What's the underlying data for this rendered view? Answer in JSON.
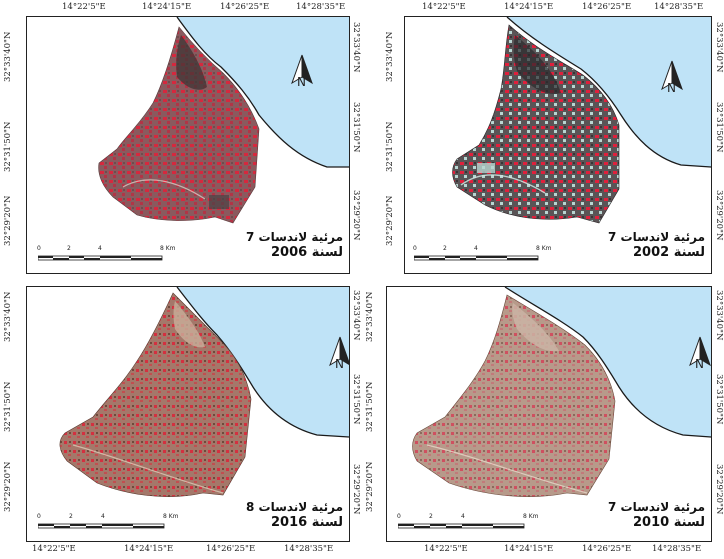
{
  "panels": [
    {
      "id": "p2006",
      "title_line1": "مرئية لاندسات 7",
      "title_line2": "لسنة 2006",
      "top_ticks": [
        "14°22'5\"E",
        "14°24'15\"E",
        "14°26'25\"E",
        "14°28'35\"E"
      ],
      "bottom_ticks": [],
      "left_ticks": [
        "32°33'40\"N",
        "32°31'50\"N",
        "32°29'20\"N"
      ],
      "right_ticks": [
        "32°33'40\"N",
        "32°31'50\"N",
        "32°29'20\"N"
      ],
      "scale_labels": [
        "0",
        "2",
        "4",
        "8 Km"
      ],
      "north_label": "N"
    },
    {
      "id": "p2002",
      "title_line1": "مرئية لاندسات 7",
      "title_line2": "لسنة 2002",
      "top_ticks": [
        "14°22'5\"E",
        "14°24'15\"E",
        "14°26'25\"E",
        "14°28'35\"E"
      ],
      "bottom_ticks": [],
      "left_ticks": [
        "32°33'40\"N",
        "32°31'50\"N",
        "32°29'20\"N"
      ],
      "right_ticks": [
        "32°33'40\"N",
        "32°31'50\"N",
        "32°29'20\"N"
      ],
      "scale_labels": [
        "0",
        "2",
        "4",
        "8 Km"
      ],
      "north_label": "N"
    },
    {
      "id": "p2016",
      "title_line1": "مرئية لاندسات 8",
      "title_line2": "لسنة 2016",
      "top_ticks": [],
      "bottom_ticks": [
        "14°22'5\"E",
        "14°24'15\"E",
        "14°26'25\"E",
        "14°28'35\"E"
      ],
      "left_ticks": [
        "32°33'40\"N",
        "32°31'50\"N",
        "32°29'20\"N"
      ],
      "right_ticks": [
        "32°33'40\"N",
        "32°31'50\"N",
        "32°29'20\"N"
      ],
      "scale_labels": [
        "0",
        "2",
        "4",
        "8 Km"
      ],
      "north_label": "N"
    },
    {
      "id": "p2010",
      "title_line1": "مرئية لاندسات 7",
      "title_line2": "لسنة 2010",
      "top_ticks": [],
      "bottom_ticks": [
        "14°22'5\"E",
        "14°24'15\"E",
        "14°26'25\"E",
        "14°28'35\"E"
      ],
      "left_ticks": [
        "32°33'40\"N",
        "32°31'50\"N",
        "32°29'20\"N"
      ],
      "right_ticks": [
        "32°33'40\"N",
        "32°31'50\"N",
        "32°29'20\"N"
      ],
      "scale_labels": [
        "0",
        "2",
        "4",
        "8 Km"
      ],
      "north_label": "N"
    }
  ],
  "colors": {
    "sea": "#bfe3f7",
    "land_bg": "#ffffff",
    "p2006": {
      "base": "#8a5a5e",
      "veg": "#d6283e",
      "dark": "#3d3536"
    },
    "p2002": {
      "base": "#5a5456",
      "veg": "#e0203c",
      "light": "#b8d6d2"
    },
    "p2016": {
      "base": "#a4786a",
      "veg": "#d43040",
      "dark": "#6e4a3c"
    },
    "p2010": {
      "base": "#b79a8a",
      "veg": "#cf5060",
      "dark": "#8a6a5c"
    }
  }
}
